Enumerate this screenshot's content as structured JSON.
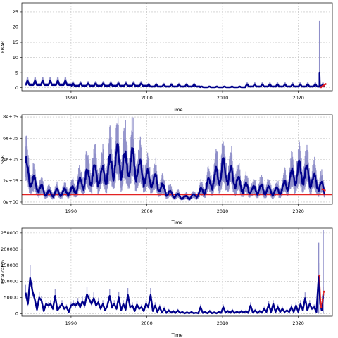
{
  "chart_data": [
    {
      "type": "line",
      "ylabel": "FBAR",
      "xlabel": "Time",
      "xlim": [
        1983.5,
        2024.5
      ],
      "ylim": [
        -1,
        28
      ],
      "xticks": [
        1990,
        2000,
        2010,
        2020
      ],
      "yticks": [
        0,
        5,
        10,
        15,
        20,
        25
      ],
      "ytick_labels": [
        "0",
        "5",
        "10",
        "15",
        "20",
        "25"
      ],
      "grid": true,
      "pattern": {
        "start": 1984,
        "end": 2023.5,
        "segments": [
          {
            "from": 1984,
            "to": 1990,
            "base": 0.9,
            "amp": 1.4
          },
          {
            "from": 1990,
            "to": 2000,
            "base": 0.6,
            "amp": 0.8
          },
          {
            "from": 2000,
            "to": 2007,
            "base": 0.4,
            "amp": 0.6
          },
          {
            "from": 2007,
            "to": 2013,
            "base": 0.15,
            "amp": 0.25
          },
          {
            "from": 2013,
            "to": 2022.5,
            "base": 0.4,
            "amp": 0.7
          }
        ],
        "band_ratio": 1.9
      },
      "spike": {
        "x": 2022.8,
        "y": 5.0,
        "band_hi": 22.0
      },
      "forecast": {
        "x": [
          2023.0,
          2023.2,
          2023.4,
          2023.6
        ],
        "y": [
          0.2,
          0.5,
          0.8,
          1.2
        ]
      },
      "series_color": "#00008b",
      "band_color": "#8f8fc9",
      "ref_line": null
    },
    {
      "type": "line",
      "ylabel": "SSB",
      "xlabel": "Time",
      "xlim": [
        1983.5,
        2024.5
      ],
      "ylim": [
        -20000,
        820000
      ],
      "xticks": [
        1990,
        2000,
        2010,
        2020
      ],
      "yticks": [
        0,
        200000,
        400000,
        600000,
        800000
      ],
      "ytick_labels": [
        "0e+00",
        "2e+05",
        "4e+05",
        "6e+05",
        "8e+05"
      ],
      "grid": true,
      "anchors": [
        [
          1984.0,
          310000
        ],
        [
          1985.0,
          180000
        ],
        [
          1986.0,
          120000
        ],
        [
          1987.0,
          80000
        ],
        [
          1988.5,
          90000
        ],
        [
          1990.0,
          100000
        ],
        [
          1991.0,
          150000
        ],
        [
          1992.0,
          230000
        ],
        [
          1993.0,
          260000
        ],
        [
          1994.0,
          230000
        ],
        [
          1995.0,
          300000
        ],
        [
          1996.0,
          400000
        ],
        [
          1997.0,
          350000
        ],
        [
          1998.0,
          380000
        ],
        [
          1999.0,
          300000
        ],
        [
          2000.0,
          220000
        ],
        [
          2001.0,
          200000
        ],
        [
          2002.0,
          130000
        ],
        [
          2003.0,
          80000
        ],
        [
          2004.0,
          60000
        ],
        [
          2005.0,
          40000
        ],
        [
          2006.0,
          50000
        ],
        [
          2007.0,
          90000
        ],
        [
          2008.0,
          150000
        ],
        [
          2009.0,
          220000
        ],
        [
          2010.0,
          300000
        ],
        [
          2011.0,
          250000
        ],
        [
          2012.0,
          180000
        ],
        [
          2013.0,
          130000
        ],
        [
          2014.0,
          110000
        ],
        [
          2015.0,
          120000
        ],
        [
          2016.0,
          110000
        ],
        [
          2017.0,
          100000
        ],
        [
          2018.0,
          130000
        ],
        [
          2019.0,
          220000
        ],
        [
          2020.0,
          280000
        ],
        [
          2021.0,
          260000
        ],
        [
          2022.0,
          200000
        ],
        [
          2023.0,
          150000
        ],
        [
          2023.5,
          100000
        ]
      ],
      "seasonal_amp": 0.35,
      "band_ratio": 1.45,
      "forecast": {
        "x": [
          2023.2,
          2023.5
        ],
        "y": [
          120000,
          110000
        ]
      },
      "series_color": "#00008b",
      "band_color": "#8f8fc9",
      "ref_line": {
        "y": 70000,
        "color": "#e32222"
      }
    },
    {
      "type": "line",
      "ylabel": "Total catch",
      "xlabel": "Time",
      "xlim": [
        1983.5,
        2024.5
      ],
      "ylim": [
        -8000,
        265000
      ],
      "xticks": [
        1990,
        2000,
        2010,
        2020
      ],
      "yticks": [
        0,
        50000,
        100000,
        150000,
        200000,
        250000
      ],
      "ytick_labels": [
        "0",
        "50000",
        "100000",
        "150000",
        "200000",
        "250000"
      ],
      "grid": true,
      "points": [
        [
          1984.0,
          65000
        ],
        [
          1984.3,
          30000
        ],
        [
          1984.6,
          110000
        ],
        [
          1984.9,
          70000
        ],
        [
          1985.2,
          45000
        ],
        [
          1985.5,
          12000
        ],
        [
          1985.8,
          50000
        ],
        [
          1986.1,
          40000
        ],
        [
          1986.4,
          8000
        ],
        [
          1986.7,
          30000
        ],
        [
          1987.0,
          25000
        ],
        [
          1987.3,
          30000
        ],
        [
          1987.6,
          15000
        ],
        [
          1987.9,
          55000
        ],
        [
          1988.2,
          10000
        ],
        [
          1988.5,
          20000
        ],
        [
          1988.8,
          30000
        ],
        [
          1989.1,
          15000
        ],
        [
          1989.4,
          20000
        ],
        [
          1989.7,
          5000
        ],
        [
          1990.0,
          25000
        ],
        [
          1990.3,
          30000
        ],
        [
          1990.6,
          25000
        ],
        [
          1990.9,
          35000
        ],
        [
          1991.2,
          20000
        ],
        [
          1991.5,
          38000
        ],
        [
          1991.8,
          25000
        ],
        [
          1992.1,
          60000
        ],
        [
          1992.4,
          45000
        ],
        [
          1992.7,
          30000
        ],
        [
          1993.0,
          48000
        ],
        [
          1993.3,
          25000
        ],
        [
          1993.6,
          35000
        ],
        [
          1993.9,
          15000
        ],
        [
          1994.2,
          30000
        ],
        [
          1994.5,
          10000
        ],
        [
          1994.8,
          25000
        ],
        [
          1995.1,
          55000
        ],
        [
          1995.4,
          20000
        ],
        [
          1995.7,
          30000
        ],
        [
          1996.0,
          15000
        ],
        [
          1996.3,
          50000
        ],
        [
          1996.6,
          10000
        ],
        [
          1996.9,
          30000
        ],
        [
          1997.2,
          12000
        ],
        [
          1997.5,
          58000
        ],
        [
          1997.8,
          20000
        ],
        [
          1998.1,
          25000
        ],
        [
          1998.4,
          8000
        ],
        [
          1998.7,
          28000
        ],
        [
          1999.0,
          15000
        ],
        [
          1999.3,
          20000
        ],
        [
          1999.6,
          8000
        ],
        [
          1999.9,
          30000
        ],
        [
          2000.2,
          20000
        ],
        [
          2000.5,
          58000
        ],
        [
          2000.8,
          8000
        ],
        [
          2001.1,
          25000
        ],
        [
          2001.4,
          5000
        ],
        [
          2001.7,
          20000
        ],
        [
          2002.0,
          3000
        ],
        [
          2002.3,
          15000
        ],
        [
          2002.6,
          2000
        ],
        [
          2002.9,
          10000
        ],
        [
          2003.2,
          3000
        ],
        [
          2003.5,
          8000
        ],
        [
          2003.8,
          2000
        ],
        [
          2004.1,
          10000
        ],
        [
          2004.4,
          2000
        ],
        [
          2004.7,
          5000
        ],
        [
          2005.0,
          1000
        ],
        [
          2005.3,
          4000
        ],
        [
          2005.6,
          1000
        ],
        [
          2005.9,
          5000
        ],
        [
          2006.2,
          1000
        ],
        [
          2006.5,
          3000
        ],
        [
          2006.8,
          1000
        ],
        [
          2007.1,
          20000
        ],
        [
          2007.4,
          2000
        ],
        [
          2007.7,
          5000
        ],
        [
          2008.0,
          1000
        ],
        [
          2008.3,
          8000
        ],
        [
          2008.6,
          1000
        ],
        [
          2008.9,
          4000
        ],
        [
          2009.2,
          1000
        ],
        [
          2009.5,
          5000
        ],
        [
          2009.8,
          2000
        ],
        [
          2010.1,
          20000
        ],
        [
          2010.4,
          3000
        ],
        [
          2010.7,
          8000
        ],
        [
          2011.0,
          2000
        ],
        [
          2011.3,
          10000
        ],
        [
          2011.6,
          2000
        ],
        [
          2011.9,
          6000
        ],
        [
          2012.2,
          2000
        ],
        [
          2012.5,
          8000
        ],
        [
          2012.8,
          3000
        ],
        [
          2013.1,
          8000
        ],
        [
          2013.4,
          2000
        ],
        [
          2013.7,
          25000
        ],
        [
          2014.0,
          3000
        ],
        [
          2014.3,
          10000
        ],
        [
          2014.6,
          2000
        ],
        [
          2014.9,
          8000
        ],
        [
          2015.2,
          3000
        ],
        [
          2015.5,
          15000
        ],
        [
          2015.8,
          5000
        ],
        [
          2016.1,
          28000
        ],
        [
          2016.4,
          5000
        ],
        [
          2016.7,
          30000
        ],
        [
          2017.0,
          5000
        ],
        [
          2017.3,
          20000
        ],
        [
          2017.6,
          5000
        ],
        [
          2017.9,
          15000
        ],
        [
          2018.2,
          5000
        ],
        [
          2018.5,
          10000
        ],
        [
          2018.8,
          5000
        ],
        [
          2019.1,
          20000
        ],
        [
          2019.4,
          5000
        ],
        [
          2019.7,
          25000
        ],
        [
          2020.0,
          5000
        ],
        [
          2020.3,
          30000
        ],
        [
          2020.6,
          10000
        ],
        [
          2020.9,
          48000
        ],
        [
          2021.2,
          10000
        ],
        [
          2021.5,
          30000
        ],
        [
          2021.8,
          15000
        ],
        [
          2022.1,
          20000
        ],
        [
          2022.4,
          5000
        ],
        [
          2022.7,
          115000
        ],
        [
          2022.9,
          30000
        ],
        [
          2023.1,
          10000
        ],
        [
          2023.3,
          60000
        ]
      ],
      "spikes": [
        {
          "x": 2022.7,
          "hi": 220000
        },
        {
          "x": 2023.3,
          "hi": 260000
        }
      ],
      "band_ratio": 1.35,
      "forecast": {
        "x": [
          2022.8,
          2023.0,
          2023.2,
          2023.4
        ],
        "y": [
          118000,
          20000,
          45000,
          68000
        ]
      },
      "series_color": "#00008b",
      "band_color": "#8f8fc9",
      "ref_line": null
    }
  ]
}
